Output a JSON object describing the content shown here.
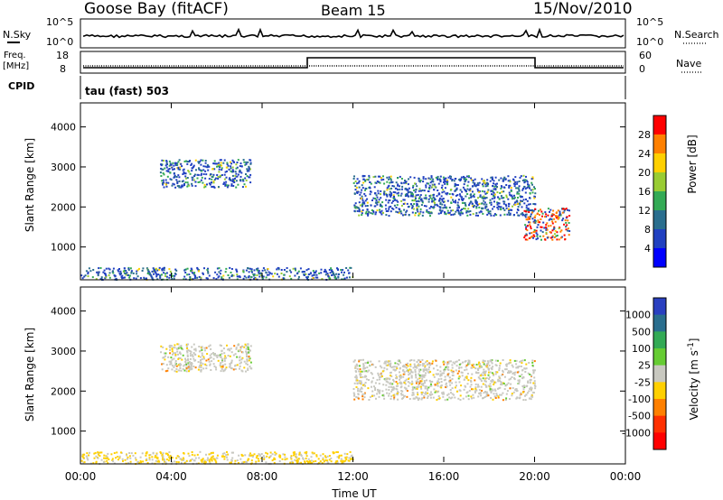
{
  "header": {
    "station": "Goose Bay (fitACF)",
    "beam": "Beam 15",
    "date": "15/Nov/2010"
  },
  "panels": {
    "nsky_label": "N.Sky",
    "nsearch_label": "N.Search",
    "nsky_ticks": [
      "10^5",
      "10^0"
    ],
    "nsearch_ticks": [
      "10^5",
      "10^0"
    ],
    "freq_label": "Freq.",
    "freq_unit": "[MHz]",
    "freq_ticks": [
      "18",
      "8"
    ],
    "nave_label": "Nave",
    "nave_ticks": [
      "60",
      "0"
    ],
    "cpid_label": "CPID",
    "cpid_value": "tau (fast) 503"
  },
  "chart_data": [
    {
      "type": "heatmap",
      "name": "power-panel",
      "ylabel": "Slant Range [km]",
      "yticks": [
        "4000",
        "3000",
        "2000",
        "1000"
      ],
      "ylim": [
        180,
        4600
      ],
      "xticks": [
        "00:00",
        "04:00",
        "08:00",
        "12:00",
        "16:00",
        "20:00",
        "00:00"
      ],
      "colorbar": {
        "label": "Power [dB]",
        "ticks": [
          "28",
          "24",
          "20",
          "16",
          "12",
          "8",
          "4"
        ],
        "colors": [
          "#ff0000",
          "#ff8000",
          "#ffd000",
          "#99cc33",
          "#33aa55",
          "#2a6e8e",
          "#2040c0",
          "#0000ff"
        ]
      },
      "echo_regions": [
        {
          "t_start": "03:30",
          "t_end": "07:30",
          "range_km": [
            2500,
            3200
          ],
          "level": "12-20 dB"
        },
        {
          "t_start": "12:00",
          "t_end": "20:00",
          "range_km": [
            1800,
            2800
          ],
          "level": "8-20 dB"
        },
        {
          "t_start": "19:30",
          "t_end": "21:30",
          "range_km": [
            1200,
            2000
          ],
          "level": "16-28 dB"
        },
        {
          "t_start": "00:00",
          "t_end": "12:00",
          "range_km": [
            200,
            500
          ],
          "level": "4-16 dB"
        }
      ]
    },
    {
      "type": "heatmap",
      "name": "velocity-panel",
      "ylabel": "Slant Range [km]",
      "yticks": [
        "4000",
        "3000",
        "2000",
        "1000"
      ],
      "ylim": [
        180,
        4600
      ],
      "xticks": [
        "00:00",
        "04:00",
        "08:00",
        "12:00",
        "16:00",
        "20:00",
        "00:00"
      ],
      "xlabel": "Time UT",
      "colorbar": {
        "label": "Velocity [m s^-1]",
        "ticks": [
          "1000",
          "500",
          "100",
          "25",
          "-25",
          "-100",
          "-500",
          "-1000"
        ],
        "colors": [
          "#2a40c0",
          "#2a6e8e",
          "#33aa55",
          "#66cc33",
          "#c8c8c0",
          "#ffd000",
          "#ff8000",
          "#ff3000",
          "#ff0000"
        ]
      },
      "echo_regions": [
        {
          "t_start": "03:30",
          "t_end": "07:30",
          "range_km": [
            2500,
            3200
          ],
          "level": "-25 to 25"
        },
        {
          "t_start": "12:00",
          "t_end": "20:00",
          "range_km": [
            1800,
            2800
          ],
          "level": "-25 to 25"
        },
        {
          "t_start": "00:00",
          "t_end": "12:00",
          "range_km": [
            200,
            500
          ],
          "level": "-100 to -25"
        }
      ]
    }
  ]
}
